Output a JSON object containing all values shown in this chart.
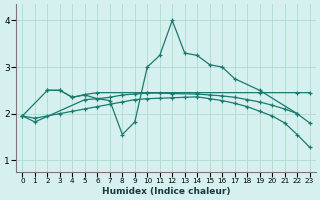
{
  "xlabel": "Humidex (Indice chaleur)",
  "bg_color": "#d6f0f0",
  "line_color": "#1a7a6e",
  "grid_color": "#aaddcc",
  "xlim": [
    -0.5,
    23.5
  ],
  "ylim": [
    0.75,
    4.35
  ],
  "yticks": [
    1,
    2,
    3,
    4
  ],
  "xticks": [
    0,
    1,
    2,
    3,
    4,
    5,
    6,
    7,
    8,
    9,
    10,
    11,
    12,
    13,
    14,
    15,
    16,
    17,
    18,
    19,
    20,
    21,
    22,
    23
  ],
  "series": [
    {
      "x": [
        2,
        3,
        4,
        5,
        6,
        7,
        8,
        9,
        10,
        11,
        12,
        13,
        14,
        15,
        16,
        17,
        19,
        22
      ],
      "y": [
        2.5,
        2.5,
        2.35,
        2.4,
        2.32,
        2.28,
        1.55,
        1.82,
        3.0,
        3.25,
        4.0,
        3.3,
        3.25,
        3.05,
        3.0,
        2.75,
        2.5,
        2.0
      ]
    },
    {
      "x": [
        0,
        2,
        3,
        4,
        5,
        6,
        10,
        14,
        19,
        22,
        23
      ],
      "y": [
        1.95,
        2.5,
        2.5,
        2.35,
        2.41,
        2.45,
        2.45,
        2.45,
        2.45,
        2.45,
        2.45
      ]
    },
    {
      "x": [
        0,
        1,
        5,
        6,
        7,
        8,
        9,
        10,
        11,
        12,
        14,
        15,
        16,
        17,
        18,
        19,
        20,
        21,
        22,
        23
      ],
      "y": [
        1.95,
        1.82,
        2.3,
        2.32,
        2.35,
        2.4,
        2.42,
        2.44,
        2.44,
        2.43,
        2.42,
        2.4,
        2.38,
        2.35,
        2.3,
        2.25,
        2.18,
        2.1,
        2.0,
        1.8
      ]
    },
    {
      "x": [
        0,
        1,
        2,
        3,
        4,
        5,
        6,
        7,
        8,
        9,
        10,
        11,
        12,
        13,
        14,
        15,
        16,
        17,
        18,
        19,
        20,
        21,
        22,
        23
      ],
      "y": [
        1.95,
        1.9,
        1.95,
        2.0,
        2.05,
        2.1,
        2.15,
        2.2,
        2.25,
        2.3,
        2.32,
        2.33,
        2.34,
        2.35,
        2.36,
        2.32,
        2.28,
        2.22,
        2.15,
        2.05,
        1.95,
        1.8,
        1.55,
        1.28
      ]
    }
  ]
}
